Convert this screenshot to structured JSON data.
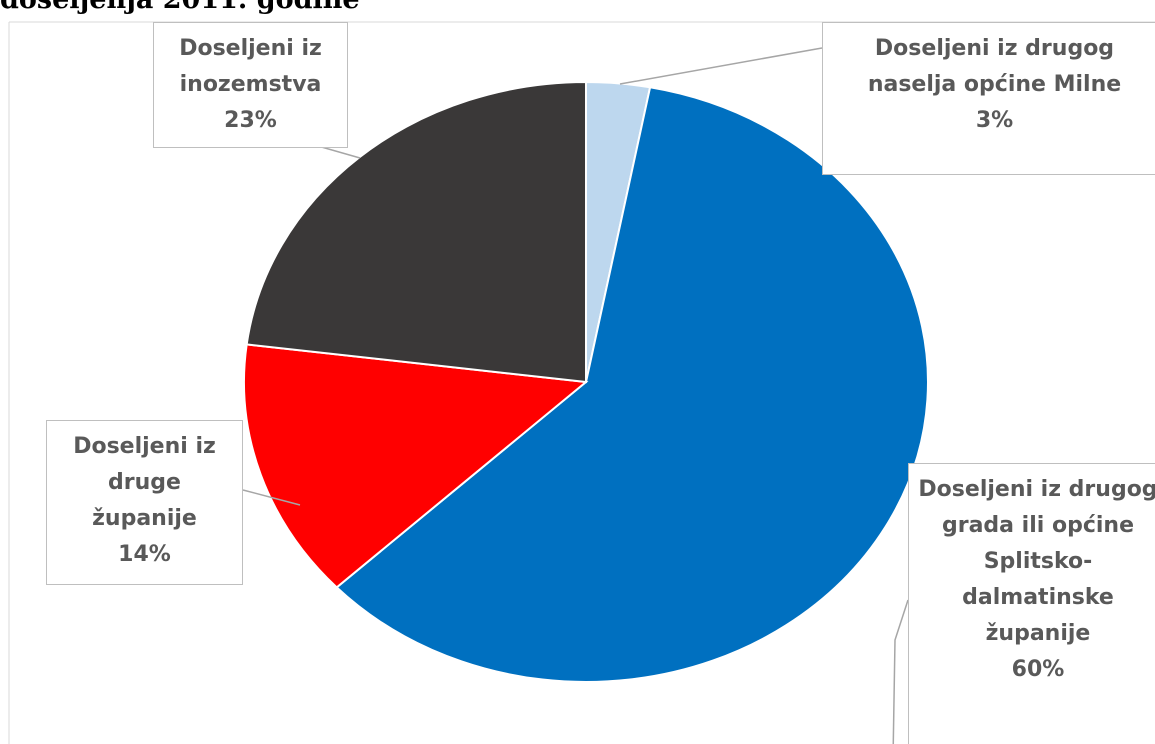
{
  "chart_data": {
    "type": "pie",
    "title": "doseljenja 2011. godine",
    "categories": [
      "Doseljeni iz drugog naselja općine Milne",
      "Doseljeni iz drugog grada ili općine Splitsko-dalmatinske županije",
      "Doseljeni iz druge županije",
      "Doseljeni iz inozemstva"
    ],
    "values": [
      3,
      60,
      14,
      23
    ],
    "value_labels": [
      "3%",
      "60%",
      "14%",
      "23%"
    ],
    "colors": [
      "#bdd7ee",
      "#0070c0",
      "#ff0000",
      "#3a3838"
    ]
  }
}
